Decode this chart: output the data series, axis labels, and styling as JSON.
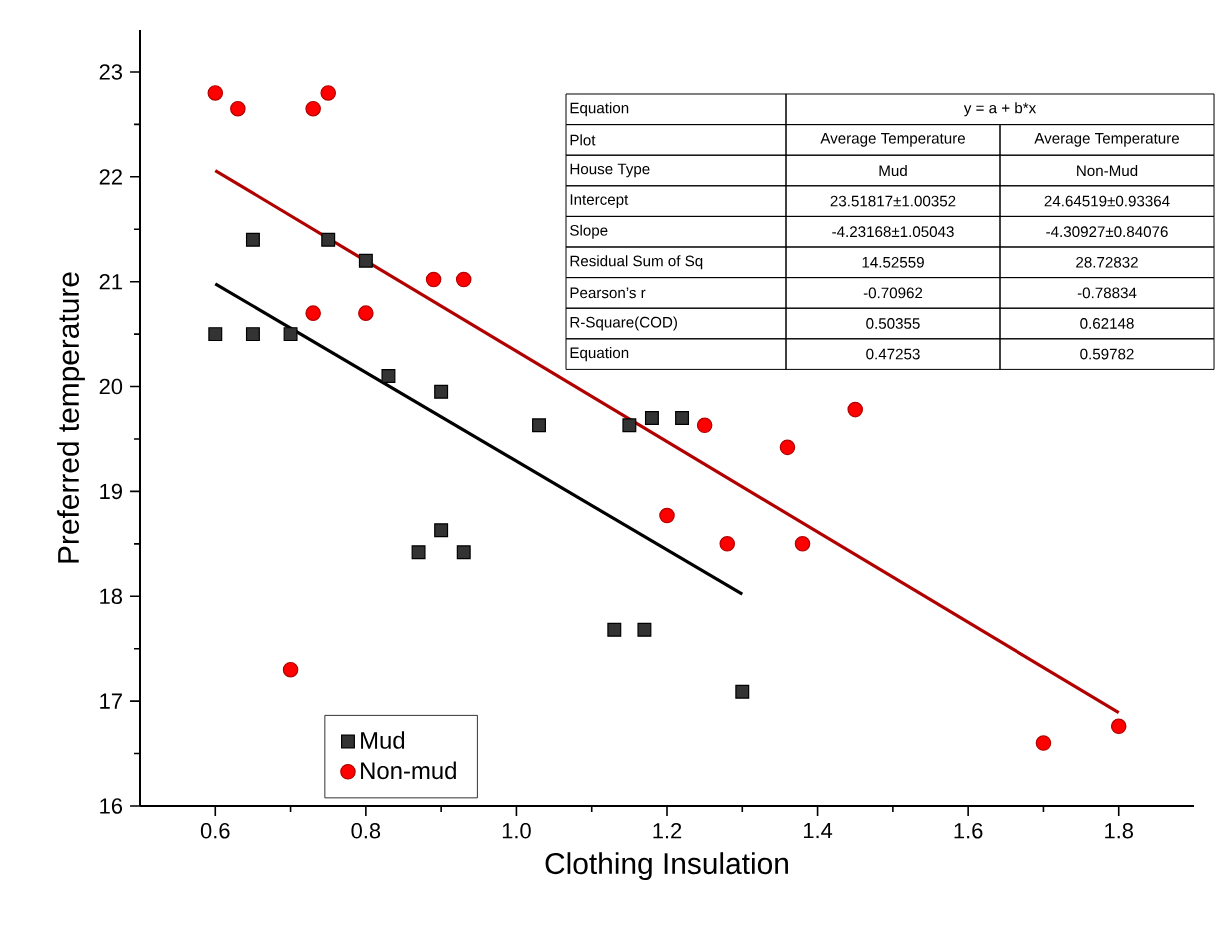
{
  "chart_data": {
    "type": "scatter",
    "xlabel": "Clothing Insulation",
    "ylabel": "Preferred temperature",
    "xlim": [
      0.5,
      1.9
    ],
    "ylim": [
      16,
      23.4
    ],
    "xticks": [
      0.6,
      0.8,
      {
        "value": 1.0,
        "label": "1.0"
      },
      1.2,
      1.4,
      1.6,
      1.8
    ],
    "yticks": [
      16,
      17,
      18,
      19,
      20,
      21,
      22,
      23
    ],
    "grid": false,
    "legend": "bottom left",
    "series": [
      {
        "name": "Mud",
        "marker": "square",
        "color": "#333333",
        "x": [
          0.6,
          0.65,
          0.65,
          0.7,
          0.75,
          0.8,
          0.83,
          0.9,
          1.03,
          0.87,
          0.9,
          0.93,
          1.15,
          1.18,
          1.22,
          1.13,
          1.17,
          1.3
        ],
        "values": [
          20.5,
          21.4,
          20.5,
          20.5,
          21.4,
          21.2,
          20.1,
          19.95,
          19.63,
          18.42,
          18.63,
          18.42,
          19.63,
          19.7,
          19.7,
          17.68,
          17.68,
          17.09
        ]
      },
      {
        "name": "Non-mud",
        "marker": "circle",
        "color": "#ff0000",
        "x": [
          0.6,
          0.63,
          0.73,
          0.75,
          0.73,
          0.8,
          0.89,
          0.93,
          0.7,
          1.25,
          1.2,
          1.28,
          1.36,
          1.38,
          1.45,
          1.7,
          1.8
        ],
        "values": [
          22.8,
          22.65,
          22.65,
          22.8,
          20.7,
          20.7,
          21.02,
          21.02,
          17.3,
          19.63,
          18.77,
          18.5,
          19.42,
          18.5,
          19.78,
          16.6,
          16.76
        ]
      },
      {
        "type": "line",
        "marker": "none",
        "color": "#000000",
        "x": [
          0.6,
          1.3
        ],
        "values": [
          20.98,
          18.02
        ]
      },
      {
        "type": "line",
        "marker": "none",
        "color": "#b00000",
        "x": [
          0.6,
          1.8
        ],
        "values": [
          22.06,
          16.89
        ]
      }
    ],
    "annotations": [
      "Equation",
      "y = a + b*x",
      "Plot",
      "Average Temperature",
      "Average Temperature",
      "House Type",
      "Mud",
      "Non-Mud",
      "Intercept",
      "23.51817±1.00352",
      "24.64519±0.93364",
      "Slope",
      "-4.23168±1.05043",
      "-4.30927±0.84076",
      "Residual Sum of Sq",
      "14.52559",
      "28.72832",
      "Pearson’s r",
      "-0.70962",
      "-0.78834",
      "R-Square(COD)",
      "0.50355",
      "0.62148",
      "Equation",
      "0.47253",
      "0.59782"
    ]
  }
}
